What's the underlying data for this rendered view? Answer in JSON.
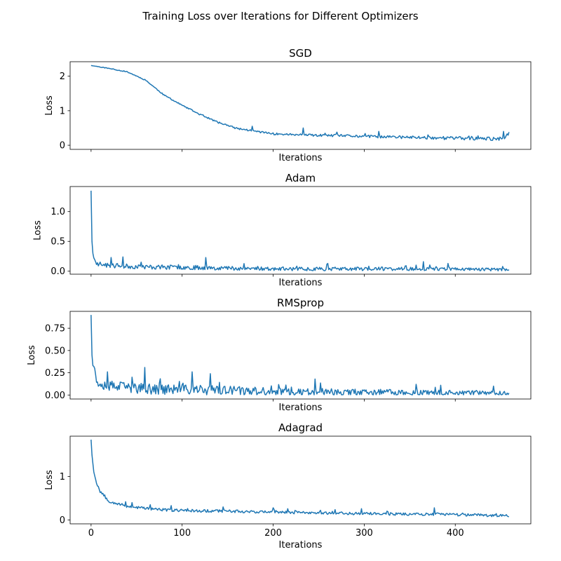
{
  "figure": {
    "suptitle": "Training Loss over Iterations for Different Optimizers"
  },
  "colors": {
    "line": "#1f77b4",
    "axis": "#000000",
    "background": "#ffffff"
  },
  "chart_data": [
    {
      "type": "line",
      "title": "SGD",
      "xlabel": "Iterations",
      "ylabel": "Loss",
      "xlim": [
        -23,
        483
      ],
      "ylim": [
        -0.12,
        2.42
      ],
      "xticks": [
        0,
        100,
        200,
        300,
        400
      ],
      "xtick_labels_visible": false,
      "yticks": [
        0,
        1,
        2
      ],
      "ytick_labels": [
        "0",
        "1",
        "2"
      ],
      "grid": false,
      "n_points": 460,
      "profile": [
        [
          0,
          2.31
        ],
        [
          20,
          2.22
        ],
        [
          40,
          2.12
        ],
        [
          60,
          1.88
        ],
        [
          80,
          1.45
        ],
        [
          100,
          1.15
        ],
        [
          120,
          0.88
        ],
        [
          140,
          0.65
        ],
        [
          160,
          0.48
        ],
        [
          180,
          0.4
        ],
        [
          200,
          0.32
        ],
        [
          240,
          0.28
        ],
        [
          280,
          0.26
        ],
        [
          320,
          0.23
        ],
        [
          360,
          0.21
        ],
        [
          400,
          0.19
        ],
        [
          440,
          0.17
        ],
        [
          455,
          0.16
        ],
        [
          459,
          0.38
        ]
      ],
      "noise": {
        "start": 0.01,
        "end": 0.07
      },
      "spikes": [
        [
          177,
          0.55
        ],
        [
          233,
          0.5
        ],
        [
          270,
          0.38
        ],
        [
          316,
          0.4
        ],
        [
          370,
          0.3
        ],
        [
          453,
          0.4
        ],
        [
          459,
          0.38
        ]
      ],
      "seed": 11
    },
    {
      "type": "line",
      "title": "Adam",
      "xlabel": "Iterations",
      "ylabel": "Loss",
      "xlim": [
        -23,
        483
      ],
      "ylim": [
        -0.05,
        1.42
      ],
      "xticks": [
        0,
        100,
        200,
        300,
        400
      ],
      "xtick_labels_visible": false,
      "yticks": [
        0.0,
        0.5,
        1.0
      ],
      "ytick_labels": [
        "0.0",
        "0.5",
        "1.0"
      ],
      "grid": false,
      "n_points": 460,
      "profile": [
        [
          0,
          1.35
        ],
        [
          1,
          0.5
        ],
        [
          2,
          0.3
        ],
        [
          3,
          0.22
        ],
        [
          6,
          0.12
        ],
        [
          20,
          0.08
        ],
        [
          60,
          0.06
        ],
        [
          120,
          0.05
        ],
        [
          200,
          0.03
        ],
        [
          300,
          0.03
        ],
        [
          400,
          0.03
        ],
        [
          459,
          0.02
        ]
      ],
      "noise": {
        "start": 0.05,
        "end": 0.03
      },
      "spikes": [
        [
          22,
          0.23
        ],
        [
          35,
          0.24
        ],
        [
          126,
          0.23
        ],
        [
          260,
          0.13
        ],
        [
          365,
          0.16
        ],
        [
          392,
          0.13
        ],
        [
          452,
          0.08
        ]
      ],
      "seed": 23
    },
    {
      "type": "line",
      "title": "RMSprop",
      "xlabel": "Iterations",
      "ylabel": "Loss",
      "xlim": [
        -23,
        483
      ],
      "ylim": [
        -0.045,
        0.94
      ],
      "xticks": [
        0,
        100,
        200,
        300,
        400
      ],
      "xtick_labels_visible": false,
      "yticks": [
        0.0,
        0.25,
        0.5,
        0.75
      ],
      "ytick_labels": [
        "0.00",
        "0.25",
        "0.50",
        "0.75"
      ],
      "grid": false,
      "n_points": 460,
      "profile": [
        [
          0,
          0.9
        ],
        [
          1,
          0.45
        ],
        [
          2,
          0.33
        ],
        [
          4,
          0.28
        ],
        [
          6,
          0.14
        ],
        [
          20,
          0.08
        ],
        [
          60,
          0.05
        ],
        [
          120,
          0.04
        ],
        [
          200,
          0.02
        ],
        [
          300,
          0.015
        ],
        [
          400,
          0.01
        ],
        [
          459,
          0.005
        ]
      ],
      "noise": {
        "start": 0.08,
        "end": 0.035
      },
      "spikes": [
        [
          18,
          0.26
        ],
        [
          45,
          0.2
        ],
        [
          59,
          0.31
        ],
        [
          111,
          0.26
        ],
        [
          131,
          0.24
        ],
        [
          246,
          0.18
        ],
        [
          357,
          0.12
        ],
        [
          384,
          0.11
        ],
        [
          442,
          0.1
        ]
      ],
      "seed": 37
    },
    {
      "type": "line",
      "title": "Adagrad",
      "xlabel": "Iterations",
      "ylabel": "Loss",
      "xlim": [
        -23,
        483
      ],
      "ylim": [
        -0.09,
        1.93
      ],
      "xticks": [
        0,
        100,
        200,
        300,
        400
      ],
      "xtick_labels_visible": true,
      "xtick_labels": [
        "0",
        "100",
        "200",
        "300",
        "400"
      ],
      "yticks": [
        0,
        1
      ],
      "ytick_labels": [
        "0",
        "1"
      ],
      "grid": false,
      "n_points": 460,
      "profile": [
        [
          0,
          1.85
        ],
        [
          1,
          1.5
        ],
        [
          2,
          1.3
        ],
        [
          3,
          1.1
        ],
        [
          6,
          0.85
        ],
        [
          10,
          0.65
        ],
        [
          20,
          0.42
        ],
        [
          40,
          0.3
        ],
        [
          80,
          0.22
        ],
        [
          120,
          0.2
        ],
        [
          160,
          0.19
        ],
        [
          200,
          0.17
        ],
        [
          260,
          0.15
        ],
        [
          320,
          0.13
        ],
        [
          380,
          0.12
        ],
        [
          459,
          0.09
        ]
      ],
      "noise": {
        "start": 0.04,
        "end": 0.04
      },
      "spikes": [
        [
          38,
          0.42
        ],
        [
          45,
          0.4
        ],
        [
          65,
          0.35
        ],
        [
          88,
          0.33
        ],
        [
          145,
          0.3
        ],
        [
          200,
          0.28
        ],
        [
          297,
          0.26
        ],
        [
          377,
          0.28
        ]
      ],
      "seed": 53
    }
  ]
}
